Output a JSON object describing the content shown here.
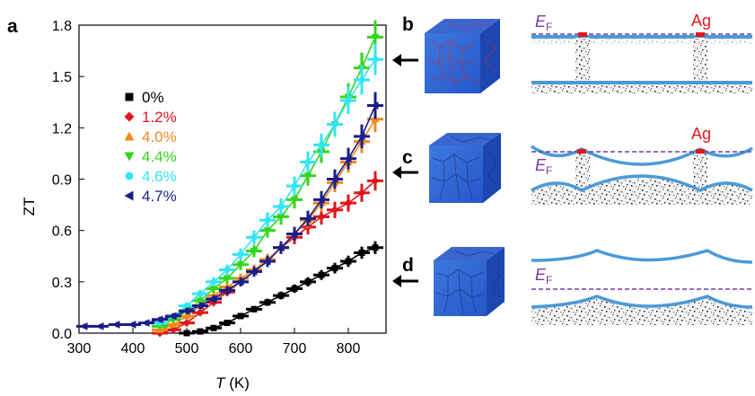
{
  "panel_labels": [
    "a",
    "b",
    "c",
    "d"
  ],
  "chart_data": {
    "type": "scatter",
    "xlabel_italic": "T",
    "xlabel_unit": " (K)",
    "ylabel": "ZT",
    "xlim": [
      300,
      870
    ],
    "ylim": [
      0,
      1.8
    ],
    "xticks": [
      300,
      400,
      500,
      600,
      700,
      800
    ],
    "yticks": [
      0.0,
      0.3,
      0.6,
      0.9,
      1.2,
      1.5,
      1.8
    ],
    "ytick_labels": [
      "0.0",
      "0.3",
      "0.6",
      "0.9",
      "1.2",
      "1.5",
      "1.8"
    ],
    "legend_position": "upper-left",
    "series": [
      {
        "name": "0%",
        "color": "#000000",
        "marker": "square",
        "x": [
          500,
          525,
          550,
          575,
          600,
          625,
          650,
          675,
          700,
          725,
          750,
          775,
          800,
          825,
          850
        ],
        "y": [
          0.0,
          0.01,
          0.03,
          0.06,
          0.1,
          0.14,
          0.18,
          0.22,
          0.26,
          0.3,
          0.34,
          0.38,
          0.42,
          0.47,
          0.5
        ]
      },
      {
        "name": "1.2%",
        "color": "#e0161c",
        "marker": "diamond",
        "x": [
          450,
          475,
          500,
          525,
          550,
          575,
          600,
          625,
          650,
          675,
          700,
          725,
          750,
          775,
          800,
          825,
          850
        ],
        "y": [
          0.0,
          0.02,
          0.06,
          0.12,
          0.18,
          0.24,
          0.3,
          0.36,
          0.43,
          0.5,
          0.56,
          0.62,
          0.68,
          0.72,
          0.76,
          0.82,
          0.89
        ]
      },
      {
        "name": "4.0%",
        "color": "#f0891c",
        "marker": "triangle-up",
        "x": [
          450,
          475,
          500,
          525,
          550,
          575,
          600,
          625,
          650,
          675,
          700,
          725,
          750,
          775,
          800,
          825,
          850
        ],
        "y": [
          0.02,
          0.05,
          0.1,
          0.16,
          0.22,
          0.27,
          0.32,
          0.37,
          0.43,
          0.5,
          0.58,
          0.66,
          0.76,
          0.88,
          1.0,
          1.12,
          1.25
        ]
      },
      {
        "name": "4.4%",
        "color": "#33d51a",
        "marker": "triangle-down",
        "x": [
          450,
          475,
          500,
          525,
          550,
          575,
          600,
          625,
          650,
          675,
          700,
          725,
          750,
          775,
          800,
          825,
          850
        ],
        "y": [
          0.04,
          0.08,
          0.13,
          0.19,
          0.26,
          0.32,
          0.4,
          0.48,
          0.6,
          0.68,
          0.78,
          0.92,
          1.06,
          1.22,
          1.38,
          1.55,
          1.73
        ]
      },
      {
        "name": "4.6%",
        "color": "#33e5f2",
        "marker": "circle",
        "x": [
          450,
          475,
          500,
          525,
          550,
          575,
          600,
          625,
          650,
          675,
          700,
          725,
          750,
          775,
          800,
          825,
          850
        ],
        "y": [
          0.06,
          0.1,
          0.16,
          0.23,
          0.3,
          0.37,
          0.46,
          0.56,
          0.66,
          0.74,
          0.86,
          1.0,
          1.1,
          1.22,
          1.36,
          1.48,
          1.6
        ]
      },
      {
        "name": "4.7%",
        "color": "#1a1e88",
        "marker": "triangle-left",
        "x": [
          310,
          340,
          370,
          400,
          425,
          450,
          475,
          500,
          525,
          550,
          575,
          600,
          625,
          650,
          675,
          700,
          725,
          750,
          775,
          800,
          825,
          850
        ],
        "y": [
          0.04,
          0.04,
          0.05,
          0.05,
          0.06,
          0.08,
          0.1,
          0.13,
          0.16,
          0.2,
          0.25,
          0.3,
          0.36,
          0.42,
          0.5,
          0.58,
          0.67,
          0.78,
          0.9,
          1.02,
          1.15,
          1.33
        ]
      }
    ]
  },
  "schematics": {
    "rows": [
      "b",
      "c",
      "d"
    ],
    "ef_label_main": "E",
    "ef_label_sub": "F",
    "ag_label": "Ag"
  }
}
